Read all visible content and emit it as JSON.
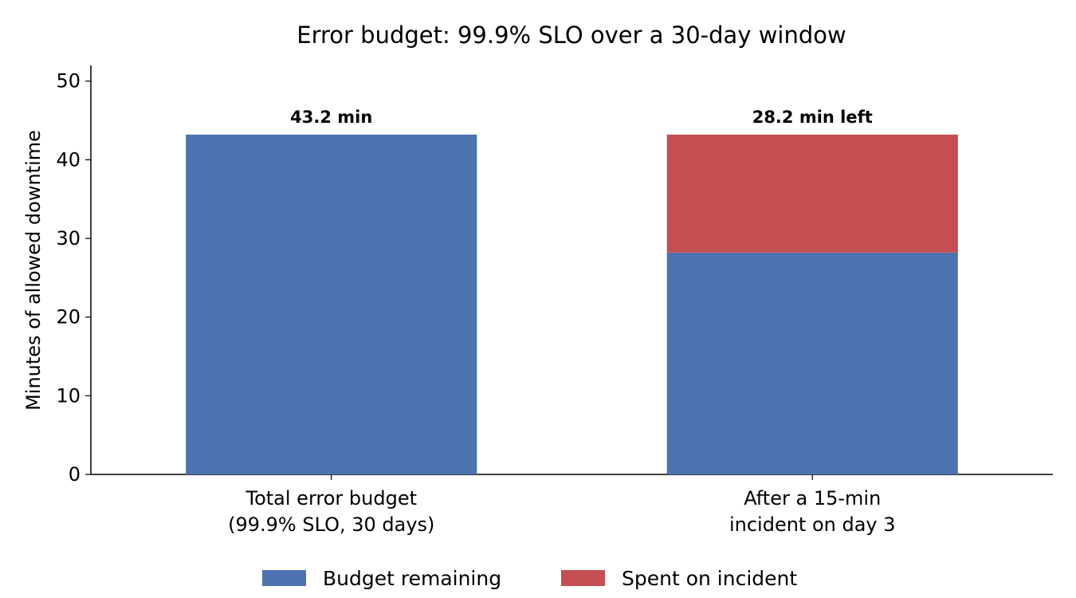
{
  "chart_data": {
    "type": "bar",
    "stacked": true,
    "title": "Error budget: 99.9% SLO over a 30-day window",
    "xlabel": "",
    "ylabel": "Minutes of allowed downtime",
    "ylim": [
      0,
      52
    ],
    "yticks": [
      0,
      10,
      20,
      30,
      40,
      50
    ],
    "categories": [
      [
        "Total error budget",
        "(99.9% SLO, 30 days)"
      ],
      [
        "After a 15-min",
        "incident on day 3"
      ]
    ],
    "series": [
      {
        "name": "Budget remaining",
        "values": [
          43.2,
          28.2
        ],
        "color": "#4c72b0"
      },
      {
        "name": "Spent on incident",
        "values": [
          0,
          15.0
        ],
        "color": "#c44e52"
      }
    ],
    "data_labels": [
      "43.2 min",
      "28.2 min left"
    ],
    "grid": false,
    "legend_position": "bottom-center"
  }
}
